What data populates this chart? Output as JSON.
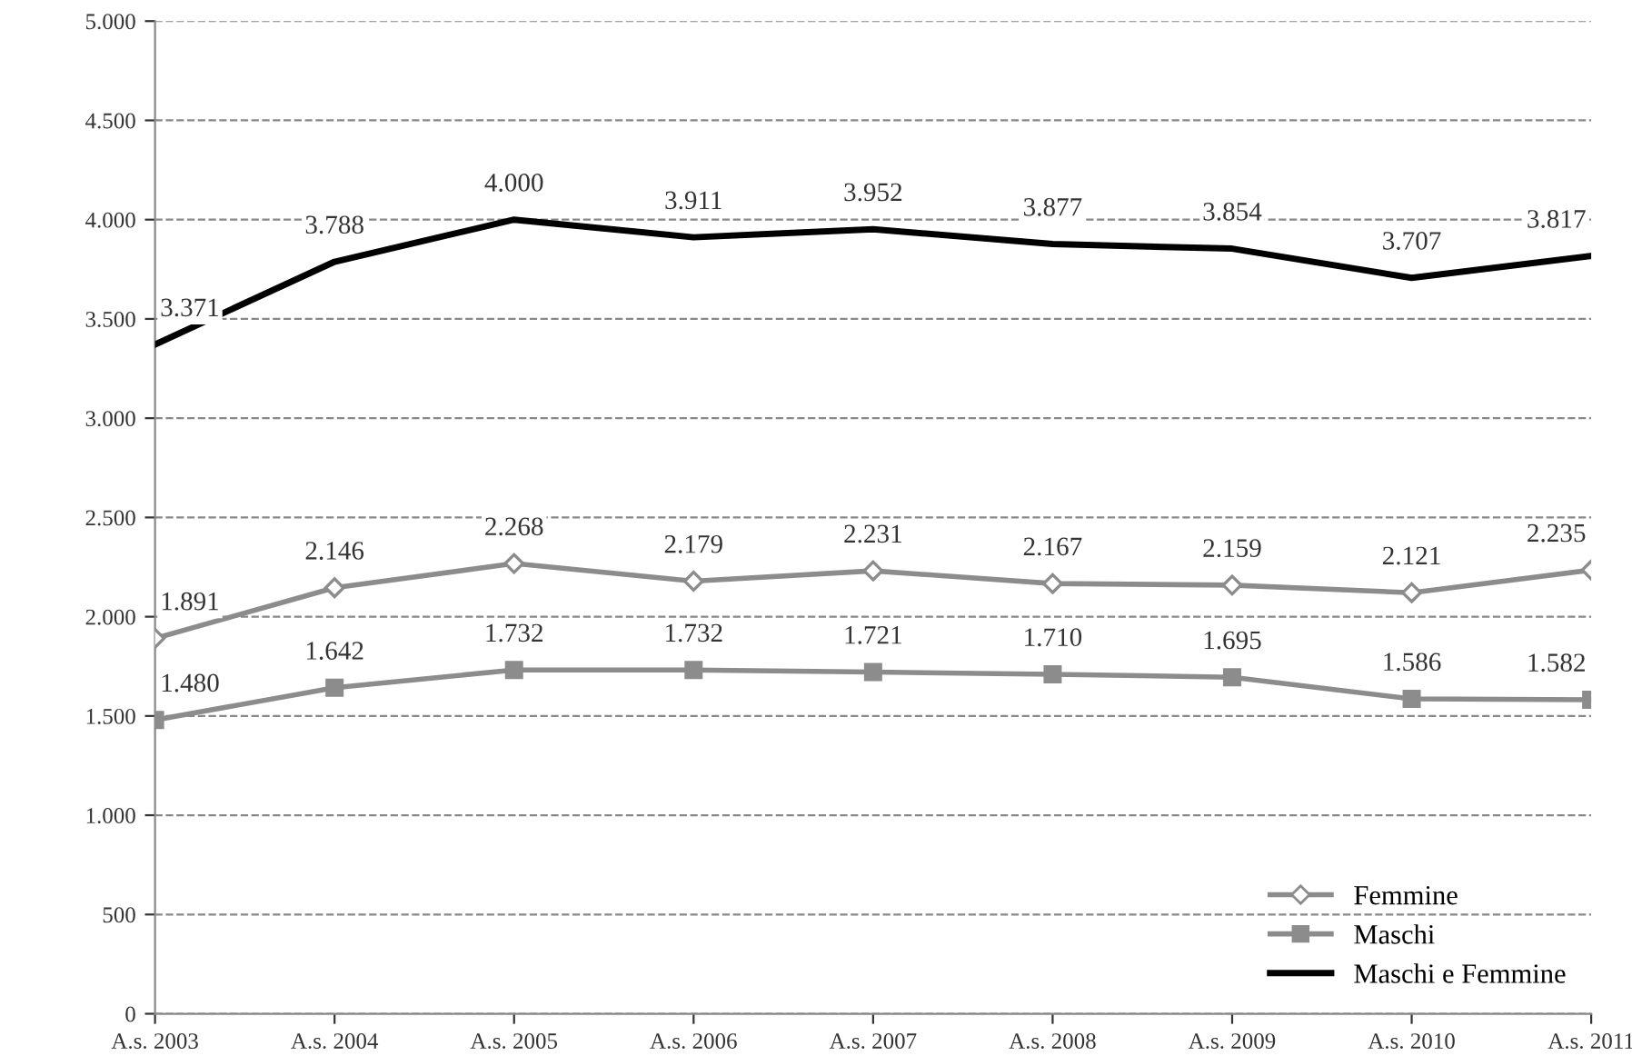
{
  "chart_data": {
    "type": "line",
    "categories": [
      "A.s. 2003",
      "A.s. 2004",
      "A.s. 2005",
      "A.s. 2006",
      "A.s. 2007",
      "A.s. 2008",
      "A.s. 2009",
      "A.s. 2010",
      "A.s. 2011"
    ],
    "series": [
      {
        "name": "Femmine",
        "color": "#8c8c8c",
        "marker": "diamond",
        "values": [
          1891,
          2146,
          2268,
          2179,
          2231,
          2167,
          2159,
          2121,
          2235
        ],
        "value_labels": [
          "1.891",
          "2.146",
          "2.268",
          "2.179",
          "2.231",
          "2.167",
          "2.159",
          "2.121",
          "2.235"
        ]
      },
      {
        "name": "Maschi",
        "color": "#8c8c8c",
        "marker": "square",
        "values": [
          1480,
          1642,
          1732,
          1732,
          1721,
          1710,
          1695,
          1586,
          1582
        ],
        "value_labels": [
          "1.480",
          "1.642",
          "1.732",
          "1.732",
          "1.721",
          "1.710",
          "1.695",
          "1.586",
          "1.582"
        ]
      },
      {
        "name": "Maschi e Femmine",
        "color": "#000000",
        "marker": "none",
        "values": [
          3371,
          3788,
          4000,
          3911,
          3952,
          3877,
          3854,
          3707,
          3817
        ],
        "value_labels": [
          "3.371",
          "3.788",
          "4.000",
          "3.911",
          "3.952",
          "3.877",
          "3.854",
          "3.707",
          "3.817"
        ]
      }
    ],
    "ylim": [
      0,
      5000
    ],
    "yticks": [
      {
        "value": 0,
        "label": "0"
      },
      {
        "value": 500,
        "label": "500"
      },
      {
        "value": 1000,
        "label": "1.000"
      },
      {
        "value": 1500,
        "label": "1.500"
      },
      {
        "value": 2000,
        "label": "2.000"
      },
      {
        "value": 2500,
        "label": "2.500"
      },
      {
        "value": 3000,
        "label": "3.000"
      },
      {
        "value": 3500,
        "label": "3.500"
      },
      {
        "value": 4000,
        "label": "4.000"
      },
      {
        "value": 4500,
        "label": "4.500"
      },
      {
        "value": 5000,
        "label": "5.000"
      }
    ],
    "grid": "y",
    "legend": "bottom right",
    "line_style": "solid"
  }
}
